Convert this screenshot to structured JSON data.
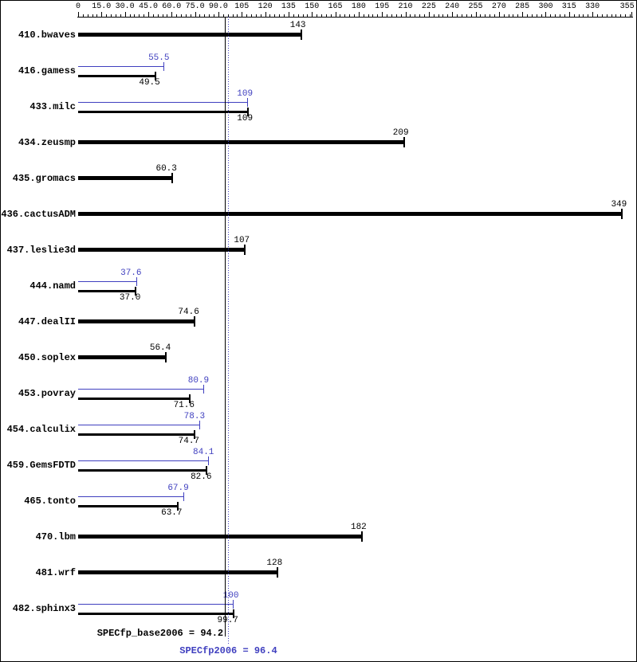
{
  "chart_data": {
    "type": "bar",
    "orientation": "horizontal",
    "description": "SPEC CPU2006 floating point benchmark result graph (black = base, blue = peak)",
    "axis": {
      "min": 0,
      "max": 355,
      "major_step": 15,
      "minor_step": 3,
      "ticks": [
        {
          "v": 0,
          "t": "0"
        },
        {
          "v": 15,
          "t": "15.0"
        },
        {
          "v": 30,
          "t": "30.0"
        },
        {
          "v": 45,
          "t": "45.0"
        },
        {
          "v": 60,
          "t": "60.0"
        },
        {
          "v": 75,
          "t": "75.0"
        },
        {
          "v": 90,
          "t": "90.0"
        },
        {
          "v": 105,
          "t": "105"
        },
        {
          "v": 120,
          "t": "120"
        },
        {
          "v": 135,
          "t": "135"
        },
        {
          "v": 150,
          "t": "150"
        },
        {
          "v": 165,
          "t": "165"
        },
        {
          "v": 180,
          "t": "180"
        },
        {
          "v": 195,
          "t": "195"
        },
        {
          "v": 210,
          "t": "210"
        },
        {
          "v": 225,
          "t": "225"
        },
        {
          "v": 240,
          "t": "240"
        },
        {
          "v": 255,
          "t": "255"
        },
        {
          "v": 270,
          "t": "270"
        },
        {
          "v": 285,
          "t": "285"
        },
        {
          "v": 300,
          "t": "300"
        },
        {
          "v": 315,
          "t": "315"
        },
        {
          "v": 330,
          "t": "330"
        },
        {
          "v": 355,
          "t": "355"
        }
      ]
    },
    "colors": {
      "base": "#000000",
      "peak": "#3f3fbf"
    },
    "benchmarks": [
      {
        "name": "410.bwaves",
        "base": 143,
        "base_label": "143",
        "peak": null,
        "peak_label": null
      },
      {
        "name": "416.gamess",
        "base": 49.5,
        "base_label": "49.5",
        "peak": 55.5,
        "peak_label": "55.5"
      },
      {
        "name": "433.milc",
        "base": 109,
        "base_label": "109",
        "peak": 109,
        "peak_label": "109"
      },
      {
        "name": "434.zeusmp",
        "base": 209,
        "base_label": "209",
        "peak": null,
        "peak_label": null
      },
      {
        "name": "435.gromacs",
        "base": 60.3,
        "base_label": "60.3",
        "peak": null,
        "peak_label": null
      },
      {
        "name": "436.cactusADM",
        "base": 349,
        "base_label": "349",
        "peak": null,
        "peak_label": null
      },
      {
        "name": "437.leslie3d",
        "base": 107,
        "base_label": "107",
        "peak": null,
        "peak_label": null
      },
      {
        "name": "444.namd",
        "base": 37.0,
        "base_label": "37.0",
        "peak": 37.6,
        "peak_label": "37.6"
      },
      {
        "name": "447.dealII",
        "base": 74.6,
        "base_label": "74.6",
        "peak": null,
        "peak_label": null
      },
      {
        "name": "450.soplex",
        "base": 56.4,
        "base_label": "56.4",
        "peak": null,
        "peak_label": null
      },
      {
        "name": "453.povray",
        "base": 71.6,
        "base_label": "71.6",
        "peak": 80.9,
        "peak_label": "80.9"
      },
      {
        "name": "454.calculix",
        "base": 74.7,
        "base_label": "74.7",
        "peak": 78.3,
        "peak_label": "78.3"
      },
      {
        "name": "459.GemsFDTD",
        "base": 82.6,
        "base_label": "82.6",
        "peak": 84.1,
        "peak_label": "84.1"
      },
      {
        "name": "465.tonto",
        "base": 63.7,
        "base_label": "63.7",
        "peak": 67.9,
        "peak_label": "67.9"
      },
      {
        "name": "470.lbm",
        "base": 182,
        "base_label": "182",
        "peak": null,
        "peak_label": null
      },
      {
        "name": "481.wrf",
        "base": 128,
        "base_label": "128",
        "peak": null,
        "peak_label": null
      },
      {
        "name": "482.sphinx3",
        "base": 99.7,
        "base_label": "99.7",
        "peak": 100,
        "peak_label": "100"
      }
    ],
    "means": {
      "base": {
        "label": "SPECfp_base2006 = 94.2",
        "value": 94.2
      },
      "peak": {
        "label": "SPECfp2006 = 96.4",
        "value": 96.4
      }
    }
  }
}
